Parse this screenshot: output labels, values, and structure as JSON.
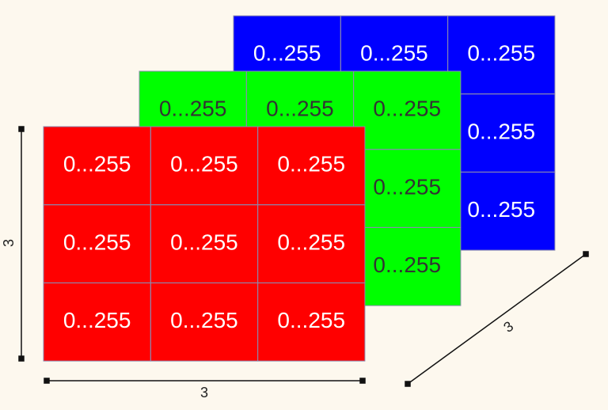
{
  "layers": [
    {
      "color": "#0000ff",
      "text_color": "#ffffff",
      "cells": [
        [
          "0...255",
          "0...255",
          "0...255"
        ],
        [
          "0...255",
          "0...255",
          "0...255"
        ],
        [
          "0...255",
          "0...255",
          "0...255"
        ]
      ]
    },
    {
      "color": "#00ff00",
      "text_color": "#333333",
      "cells": [
        [
          "0...255",
          "0...255",
          "0...255"
        ],
        [
          "0...255",
          "0...255",
          "0...255"
        ],
        [
          "0...255",
          "0...255",
          "0...255"
        ]
      ]
    },
    {
      "color": "#ff0000",
      "text_color": "#ffffff",
      "cells": [
        [
          "0...255",
          "0...255",
          "0...255"
        ],
        [
          "0...255",
          "0...255",
          "0...255"
        ],
        [
          "0...255",
          "0...255",
          "0...255"
        ]
      ]
    }
  ],
  "dimensions": {
    "height": "3",
    "width": "3",
    "depth": "3"
  }
}
